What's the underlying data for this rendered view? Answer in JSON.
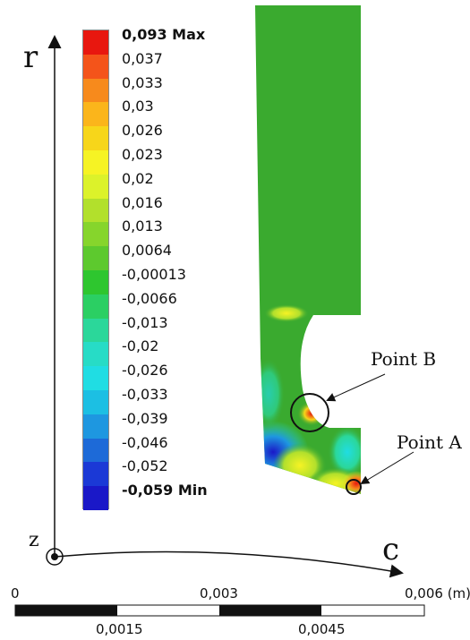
{
  "legend": {
    "levels": [
      {
        "label": "0,093 Max",
        "color": "#e8170f",
        "bold": true
      },
      {
        "label": "0,037",
        "color": "#f4541a"
      },
      {
        "label": "0,033",
        "color": "#f78a1c"
      },
      {
        "label": "0,03",
        "color": "#fbb51b"
      },
      {
        "label": "0,026",
        "color": "#f7d61a"
      },
      {
        "label": "0,023",
        "color": "#f6f324"
      },
      {
        "label": "0,02",
        "color": "#dcf22a"
      },
      {
        "label": "0,016",
        "color": "#b2e02c"
      },
      {
        "label": "0,013",
        "color": "#86d52c"
      },
      {
        "label": "0,0064",
        "color": "#5dc92e"
      },
      {
        "label": "-0,00013",
        "color": "#2ec62f"
      },
      {
        "label": "-0,0066",
        "color": "#2bcf63"
      },
      {
        "label": "-0,013",
        "color": "#2bd79a"
      },
      {
        "label": "-0,02",
        "color": "#27dcc6"
      },
      {
        "label": "-0,026",
        "color": "#20dde3"
      },
      {
        "label": "-0,033",
        "color": "#1cbfe3"
      },
      {
        "label": "-0,039",
        "color": "#1e97e0"
      },
      {
        "label": "-0,046",
        "color": "#1d6ad8"
      },
      {
        "label": "-0,052",
        "color": "#1b39d6"
      },
      {
        "label": "-0,059 Min",
        "color": "#1a18c8",
        "bold": true
      }
    ]
  },
  "axes": {
    "vertical_label": "r",
    "horizontal_label": "c",
    "origin_label": "z"
  },
  "annotations": {
    "point_a": "Point A",
    "point_b": "Point B"
  },
  "scale_bar": {
    "top_labels": [
      "0",
      "0,003",
      "0,006 (m)"
    ],
    "bottom_labels": [
      "0,0015",
      "0,0045"
    ]
  },
  "colors": {
    "part_base": "#3aaa2f"
  }
}
